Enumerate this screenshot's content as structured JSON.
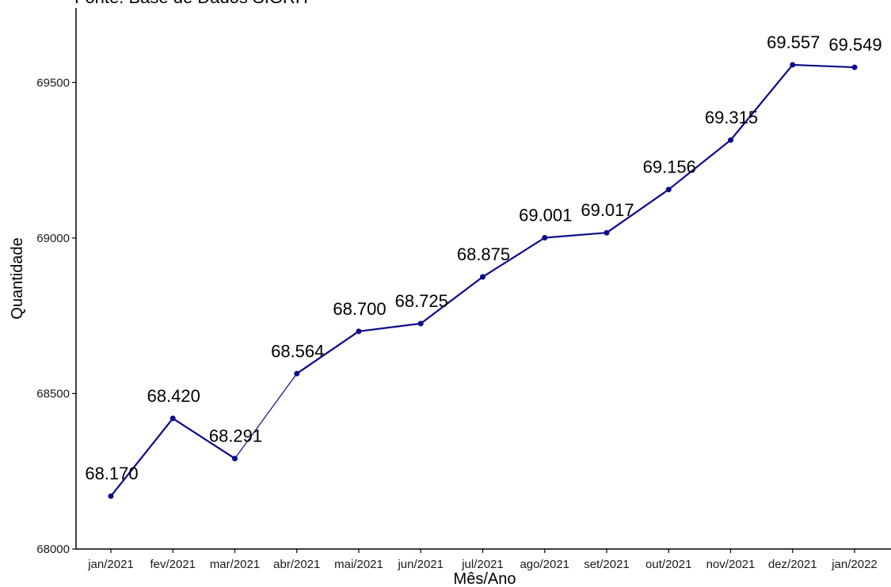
{
  "source_note": "Fonte: Base de Dados SIGRH",
  "colors": {
    "line": "#0a0a8a",
    "point": "#0a0a8a",
    "text": "#000000",
    "axis": "#000000"
  },
  "chart_data": {
    "type": "line",
    "title": "",
    "xlabel": "Mês/Ano",
    "ylabel": "Quantidade",
    "categories": [
      "jan/2021",
      "fev/2021",
      "mar/2021",
      "abr/2021",
      "mai/2021",
      "jun/2021",
      "jul/2021",
      "ago/2021",
      "set/2021",
      "out/2021",
      "nov/2021",
      "dez/2021",
      "jan/2022"
    ],
    "values": [
      68170,
      68420,
      68291,
      68564,
      68700,
      68725,
      68875,
      69001,
      69017,
      69156,
      69315,
      69557,
      69549
    ],
    "data_labels": [
      "68.170",
      "68.420",
      "68.291",
      "68.564",
      "68.700",
      "68.725",
      "68.875",
      "69.001",
      "69.017",
      "69.156",
      "69.315",
      "69.557",
      "69.549"
    ],
    "yticks": [
      68000,
      68500,
      69000,
      69500
    ],
    "ylim": [
      68000,
      69740
    ],
    "grid": false,
    "legend": "none"
  }
}
